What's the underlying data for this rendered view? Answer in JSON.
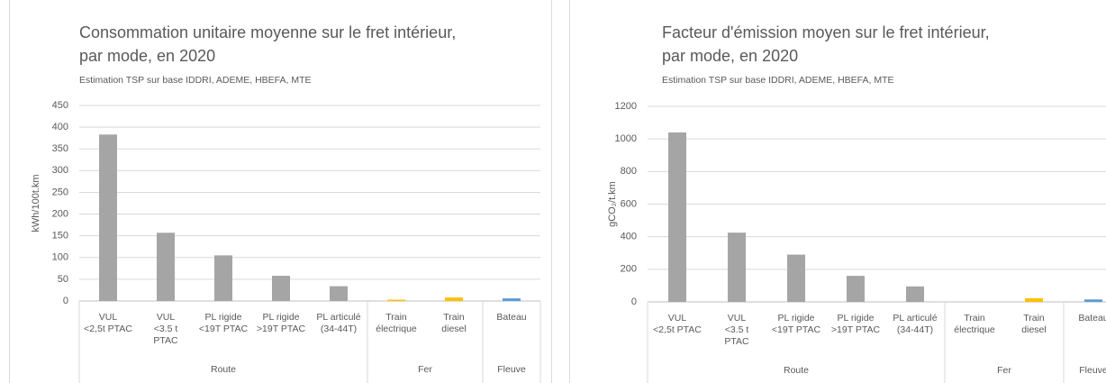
{
  "chart_data": [
    {
      "type": "bar",
      "title": [
        "Consommation unitaire moyenne sur le fret intérieur,",
        "par mode, en 2020"
      ],
      "subtitle": "Estimation TSP sur base IDDRI, ADEME,  HBEFA,  MTE",
      "y_label": "kWh/100t.km",
      "categories": [
        [
          "VUL",
          "<2,5t PTAC"
        ],
        [
          "VUL",
          "<3.5 t",
          "PTAC"
        ],
        [
          "PL rigide",
          "<19T PTAC"
        ],
        [
          "PL rigide",
          ">19T PTAC"
        ],
        [
          "PL articulé",
          "(34-44T)"
        ],
        [
          "Train",
          "électrique"
        ],
        [
          "Train",
          "diesel"
        ],
        [
          "Bateau"
        ]
      ],
      "groups": [
        {
          "label": "Route",
          "count": 5
        },
        {
          "label": "Fer",
          "count": 2
        },
        {
          "label": "Fleuve",
          "count": 1
        }
      ],
      "values": [
        383,
        157,
        105,
        58,
        34,
        3,
        8,
        6
      ],
      "colors": [
        "#a5a5a5",
        "#a5a5a5",
        "#a5a5a5",
        "#a5a5a5",
        "#a5a5a5",
        "#ffc000",
        "#ffc000",
        "#5b9bd5"
      ],
      "ylim": [
        0,
        450
      ],
      "yticks": [
        0,
        50,
        100,
        150,
        200,
        250,
        300,
        350,
        400,
        450
      ],
      "grid": true
    },
    {
      "type": "bar",
      "title": [
        "Facteur d'émission moyen sur le fret intérieur,",
        "par mode, en 2020"
      ],
      "subtitle": "Estimation TSP sur base IDDRI, ADEME,  HBEFA,  MTE",
      "y_label": "gCO₂/t.km",
      "categories": [
        [
          "VUL",
          "<2,5t PTAC"
        ],
        [
          "VUL",
          "<3.5 t",
          "PTAC"
        ],
        [
          "PL rigide",
          "<19T PTAC"
        ],
        [
          "PL rigide",
          ">19T PTAC"
        ],
        [
          "PL articulé",
          "(34-44T)"
        ],
        [
          "Train",
          "électrique"
        ],
        [
          "Train",
          "diesel"
        ],
        [
          "Bateau"
        ]
      ],
      "groups": [
        {
          "label": "Route",
          "count": 5
        },
        {
          "label": "Fer",
          "count": 2
        },
        {
          "label": "Fleuve",
          "count": 1
        }
      ],
      "values": [
        1040,
        425,
        290,
        160,
        95,
        0,
        22,
        15
      ],
      "colors": [
        "#a5a5a5",
        "#a5a5a5",
        "#a5a5a5",
        "#a5a5a5",
        "#a5a5a5",
        "#ffc000",
        "#ffc000",
        "#5b9bd5"
      ],
      "ylim": [
        0,
        1200
      ],
      "yticks": [
        0,
        200,
        400,
        600,
        800,
        1000,
        1200
      ],
      "grid": true
    }
  ]
}
